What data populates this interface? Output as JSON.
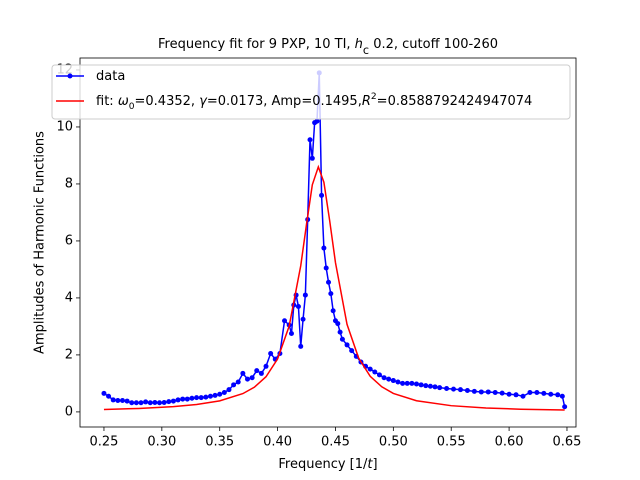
{
  "chart_data": {
    "type": "line",
    "title": [
      "Frequency fit for 9 PXP, 10 TI, ",
      "h",
      "c",
      " 0.2, cutoff 100-260"
    ],
    "xlabel": [
      "Frequency [1/",
      "t",
      "]"
    ],
    "ylabel": "Amplitudes of Harmonic Functions",
    "xlim": [
      0.2293,
      0.6578
    ],
    "ylim": [
      -0.53,
      12.42
    ],
    "xticks": [
      0.25,
      {
        "value": 0.3,
        "label": "0.30"
      },
      0.35,
      {
        "value": 0.4,
        "label": "0.40"
      },
      0.45,
      {
        "value": 0.5,
        "label": "0.50"
      },
      0.55,
      {
        "value": 0.6,
        "label": "0.60"
      },
      0.65
    ],
    "yticks": [
      0,
      2,
      4,
      6,
      8,
      10,
      12
    ],
    "legend": "upper left",
    "series": [
      {
        "name": [
          "data"
        ],
        "color": "#0000ff",
        "marker": "o",
        "x": [
          0.25,
          0.254,
          0.258,
          0.262,
          0.266,
          0.27,
          0.274,
          0.278,
          0.282,
          0.286,
          0.29,
          0.294,
          0.298,
          0.302,
          0.306,
          0.31,
          0.314,
          0.318,
          0.322,
          0.326,
          0.33,
          0.334,
          0.338,
          0.342,
          0.346,
          0.35,
          0.354,
          0.358,
          0.362,
          0.366,
          0.37,
          0.374,
          0.378,
          0.382,
          0.386,
          0.39,
          0.394,
          0.398,
          0.402,
          0.406,
          0.41,
          0.412,
          0.414,
          0.416,
          0.418,
          0.42,
          0.422,
          0.424,
          0.426,
          0.428,
          0.43,
          0.432,
          0.434,
          0.436,
          0.438,
          0.44,
          0.442,
          0.444,
          0.446,
          0.448,
          0.45,
          0.452,
          0.454,
          0.456,
          0.46,
          0.464,
          0.468,
          0.472,
          0.476,
          0.48,
          0.484,
          0.488,
          0.492,
          0.496,
          0.5,
          0.504,
          0.508,
          0.512,
          0.516,
          0.52,
          0.524,
          0.528,
          0.532,
          0.536,
          0.54,
          0.546,
          0.552,
          0.558,
          0.564,
          0.57,
          0.576,
          0.582,
          0.588,
          0.594,
          0.6,
          0.606,
          0.612,
          0.618,
          0.624,
          0.63,
          0.636,
          0.642,
          0.646,
          0.648
        ],
        "values": [
          0.65,
          0.55,
          0.42,
          0.4,
          0.4,
          0.38,
          0.32,
          0.32,
          0.32,
          0.35,
          0.32,
          0.33,
          0.32,
          0.33,
          0.36,
          0.38,
          0.42,
          0.45,
          0.45,
          0.48,
          0.5,
          0.5,
          0.52,
          0.55,
          0.58,
          0.62,
          0.68,
          0.78,
          0.95,
          1.05,
          1.35,
          1.15,
          1.2,
          1.45,
          1.35,
          1.6,
          2.05,
          1.85,
          2.05,
          3.2,
          3.05,
          2.75,
          3.75,
          4.1,
          3.7,
          2.3,
          3.25,
          4.1,
          6.75,
          9.55,
          8.9,
          10.15,
          10.2,
          11.9,
          7.6,
          5.75,
          5.05,
          4.55,
          4.15,
          3.55,
          3.2,
          3.1,
          2.8,
          2.55,
          2.35,
          2.15,
          1.95,
          1.75,
          1.6,
          1.5,
          1.4,
          1.3,
          1.2,
          1.15,
          1.1,
          1.05,
          1.0,
          1.0,
          1.0,
          0.98,
          0.95,
          0.92,
          0.9,
          0.88,
          0.85,
          0.82,
          0.8,
          0.78,
          0.75,
          0.72,
          0.7,
          0.7,
          0.68,
          0.66,
          0.62,
          0.6,
          0.55,
          0.68,
          0.68,
          0.65,
          0.62,
          0.6,
          0.55,
          0.18
        ]
      },
      {
        "name": [
          "fit: ",
          "ω",
          "0",
          "=0.4352, ",
          "γ",
          "=0.0173, Amp=0.1495,",
          "R",
          "2",
          "=0.8588792424947074"
        ],
        "color": "#ff0000",
        "x": [
          0.25,
          0.28,
          0.31,
          0.33,
          0.35,
          0.37,
          0.38,
          0.39,
          0.4,
          0.41,
          0.42,
          0.425,
          0.43,
          0.4352,
          0.44,
          0.445,
          0.45,
          0.46,
          0.47,
          0.48,
          0.49,
          0.5,
          0.52,
          0.55,
          0.58,
          0.61,
          0.648
        ],
        "values": [
          0.085,
          0.121,
          0.184,
          0.258,
          0.387,
          0.642,
          0.869,
          1.234,
          1.86,
          3.01,
          5.13,
          6.59,
          7.97,
          8.6,
          8.06,
          6.71,
          5.24,
          3.07,
          1.89,
          1.25,
          0.88,
          0.648,
          0.391,
          0.218,
          0.138,
          0.095,
          0.065
        ]
      }
    ]
  }
}
